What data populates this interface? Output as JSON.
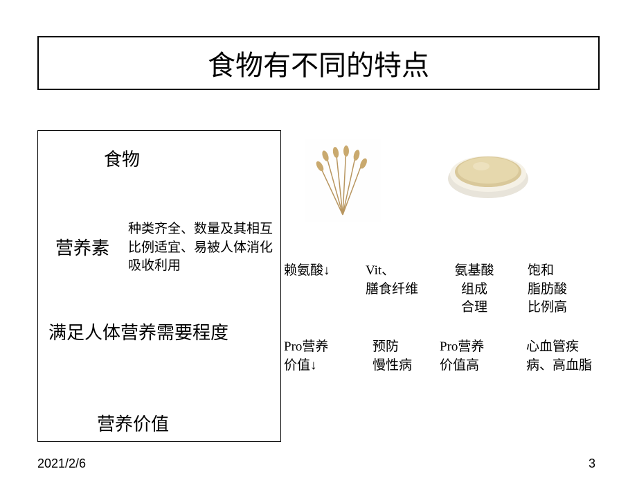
{
  "title": "食物有不同的特点",
  "leftBox": {
    "label1": "食物",
    "label2": "营养素",
    "desc": "种类齐全、数量及其相互比例适宜、易被人体消化吸收利用",
    "label3": "满足人体营养需要程度",
    "label4": "营养价值"
  },
  "grid": {
    "c1r1": "赖氨酸↓",
    "c2r1": "Vit、\n膳食纤维",
    "c3r1": "氨基酸\n组成\n合理",
    "c4r1": "饱和\n脂肪酸\n比例高",
    "c1r2": "Pro营养\n价值↓",
    "c2r2": "预防\n慢性病",
    "c3r2": "Pro营养\n价值高",
    "c4r2": "心血管疾\n病、高血脂"
  },
  "footer": {
    "date": "2021/2/6",
    "page": "3"
  }
}
